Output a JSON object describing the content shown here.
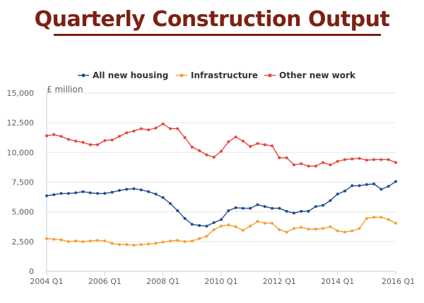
{
  "title": "Quarterly Construction Output",
  "colors": {
    "title": "#7b2113",
    "grid": "#e6e6e6",
    "axis": "#c0d0e0",
    "series": [
      "#1f4e8c",
      "#f4a034",
      "#e4463c"
    ]
  },
  "chart_data": {
    "type": "line",
    "title": "Quarterly Construction Output",
    "ylabel": "£ million",
    "unit_label": "£ million",
    "ylim": [
      0,
      15000
    ],
    "y_ticks": [
      0,
      2500,
      5000,
      7500,
      10000,
      12500,
      15000
    ],
    "y_tick_labels": [
      "0",
      "2,500",
      "5,000",
      "7,500",
      "10,000",
      "12,500",
      "15,000"
    ],
    "x_ticks": [
      {
        "label": "2004 Q1",
        "index": 0
      },
      {
        "label": "2006 Q1",
        "index": 8
      },
      {
        "label": "2008 Q1",
        "index": 16
      },
      {
        "label": "2010 Q1",
        "index": 24
      },
      {
        "label": "2012 Q1",
        "index": 32
      },
      {
        "label": "2014 Q1",
        "index": 40
      },
      {
        "label": "2016 Q1",
        "index": 48
      }
    ],
    "x": [
      "2004 Q1",
      "2004 Q2",
      "2004 Q3",
      "2004 Q4",
      "2005 Q1",
      "2005 Q2",
      "2005 Q3",
      "2005 Q4",
      "2006 Q1",
      "2006 Q2",
      "2006 Q3",
      "2006 Q4",
      "2007 Q1",
      "2007 Q2",
      "2007 Q3",
      "2007 Q4",
      "2008 Q1",
      "2008 Q2",
      "2008 Q3",
      "2008 Q4",
      "2009 Q1",
      "2009 Q2",
      "2009 Q3",
      "2009 Q4",
      "2010 Q1",
      "2010 Q2",
      "2010 Q3",
      "2010 Q4",
      "2011 Q1",
      "2011 Q2",
      "2011 Q3",
      "2011 Q4",
      "2012 Q1",
      "2012 Q2",
      "2012 Q3",
      "2012 Q4",
      "2013 Q1",
      "2013 Q2",
      "2013 Q3",
      "2013 Q4",
      "2014 Q1",
      "2014 Q2",
      "2014 Q3",
      "2014 Q4",
      "2015 Q1",
      "2015 Q2",
      "2015 Q3",
      "2015 Q4",
      "2016 Q1"
    ],
    "grid": true,
    "legend_position": "top-center",
    "series": [
      {
        "name": "All new housing",
        "values": [
          6350,
          6450,
          6550,
          6550,
          6600,
          6700,
          6600,
          6550,
          6550,
          6650,
          6800,
          6900,
          6950,
          6850,
          6700,
          6500,
          6200,
          5700,
          5100,
          4450,
          3950,
          3850,
          3800,
          4100,
          4350,
          5100,
          5350,
          5300,
          5300,
          5600,
          5450,
          5300,
          5300,
          5050,
          4900,
          5050,
          5050,
          5450,
          5550,
          5950,
          6500,
          6750,
          7200,
          7200,
          7300,
          7350,
          6900,
          7150,
          7550
        ]
      },
      {
        "name": "Infrastructure",
        "values": [
          2750,
          2700,
          2650,
          2500,
          2550,
          2500,
          2550,
          2600,
          2550,
          2350,
          2250,
          2250,
          2200,
          2250,
          2300,
          2350,
          2450,
          2550,
          2600,
          2500,
          2550,
          2750,
          2950,
          3500,
          3800,
          3900,
          3750,
          3450,
          3800,
          4200,
          4050,
          4050,
          3500,
          3300,
          3600,
          3700,
          3550,
          3550,
          3600,
          3750,
          3400,
          3300,
          3400,
          3600,
          4450,
          4550,
          4550,
          4350,
          4050
        ]
      },
      {
        "name": "Other new work",
        "values": [
          11400,
          11500,
          11350,
          11100,
          10950,
          10850,
          10650,
          10650,
          11000,
          11050,
          11350,
          11650,
          11800,
          12000,
          11900,
          12050,
          12400,
          12000,
          12000,
          11250,
          10450,
          10150,
          9800,
          9600,
          10100,
          10900,
          11300,
          10950,
          10500,
          10750,
          10650,
          10550,
          9550,
          9550,
          8950,
          9050,
          8850,
          8850,
          9150,
          8950,
          9250,
          9400,
          9450,
          9500,
          9350,
          9400,
          9400,
          9400,
          9150
        ]
      }
    ]
  }
}
